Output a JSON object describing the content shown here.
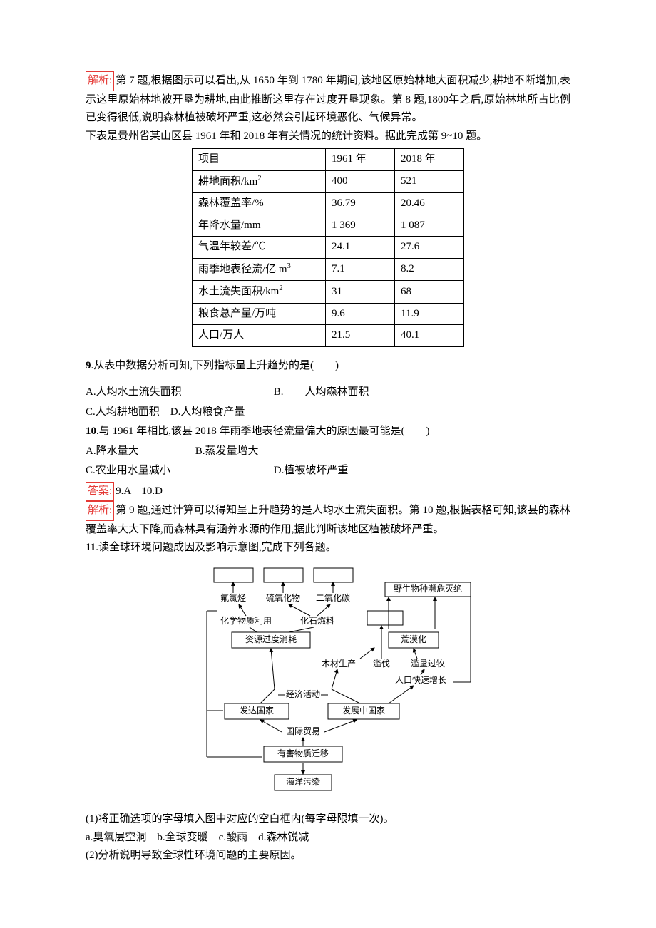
{
  "analysis7_8": {
    "label": "解析:",
    "text": "第 7 题,根据图示可以看出,从 1650 年到 1780 年期间,该地区原始林地大面积减少,耕地不断增加,表示这里原始林地被开垦为耕地,由此推断这里存在过度开垦现象。第 8 题,1800年之后,原始林地所占比例已变得很低,说明森林植被破坏严重,这必然会引起环境恶化、气候异常。"
  },
  "table_intro": "下表是贵州省某山区县 1961 年和 2018 年有关情况的统计资料。据此完成第 9~10 题。",
  "table": {
    "columns": [
      "项目",
      "1961 年",
      "2018 年"
    ],
    "rows": [
      {
        "item": "耕地面积/km",
        "sup": "2",
        "y1961": "400",
        "y2018": "521"
      },
      {
        "item": "森林覆盖率/%",
        "sup": "",
        "y1961": "36.79",
        "y2018": "20.46"
      },
      {
        "item": "年降水量/mm",
        "sup": "",
        "y1961": "1 369",
        "y2018": "1 087"
      },
      {
        "item": "气温年较差/℃",
        "sup": "",
        "y1961": "24.1",
        "y2018": "27.6"
      },
      {
        "item": "雨季地表径流/亿 m",
        "sup": "3",
        "y1961": "7.1",
        "y2018": "8.2"
      },
      {
        "item": "水土流失面积/km",
        "sup": "2",
        "y1961": "31",
        "y2018": "68"
      },
      {
        "item": "粮食总产量/万吨",
        "sup": "",
        "y1961": "9.6",
        "y2018": "11.9"
      },
      {
        "item": "人口/万人",
        "sup": "",
        "y1961": "21.5",
        "y2018": "40.1"
      }
    ],
    "col_widths": [
      "170px",
      "80px",
      "80px"
    ],
    "border_color": "#000000"
  },
  "q9": {
    "num": "9",
    "stem": ".从表中数据分析可知,下列指标呈上升趋势的是(　　)",
    "optA": "A.人均水土流失面积",
    "optB": "B.　　人均森林面积",
    "optC": "C.人均耕地面积",
    "optD": "D.人均粮食产量"
  },
  "q10": {
    "num": "10",
    "stem": ".与 1961 年相比,该县 2018 年雨季地表径流量偏大的原因最可能是(　　)",
    "optA": "A.降水量大",
    "optB": "B.蒸发量增大",
    "optC": "C.农业用水量减小",
    "optD": "D.植被破坏严重"
  },
  "answer9_10": {
    "label": "答案:",
    "text": "9.A　10.D"
  },
  "analysis9_10": {
    "label": "解析:",
    "text": "第 9 题,通过计算可以得知呈上升趋势的是人均水土流失面积。第 10 题,根据表格可知,该县的森林覆盖率大大下降,而森林具有涵养水源的作用,据此判断该地区植被破坏严重。"
  },
  "q11": {
    "num": "11",
    "stem": ".读全球环境问题成因及影响示意图,完成下列各题。"
  },
  "diagram": {
    "top_blanks": 3,
    "top_right": "野生物种濒危灭绝",
    "row2_labels": [
      "氟氯烃",
      "硫氧化物",
      "二氧化碳"
    ],
    "row3_labels": [
      "化学物质利用",
      "化石燃料"
    ],
    "row4_left": "资源过度消耗",
    "row4_right": "荒漠化",
    "row4b_labels": [
      "木材生产",
      "滥伐",
      "滥垦过牧"
    ],
    "row4c_right": "人口快速增长",
    "row5_center": "经济活动",
    "row6_left": "发达国家",
    "row6_right": "发展中国家",
    "row7_center": "国际贸易",
    "row8_center": "有害物质迁移",
    "row9_center": "海洋污染"
  },
  "q11_sub1": "(1)将正确选项的字母填入图中对应的空白框内(每字母限填一次)。",
  "q11_opts": "a.臭氧层空洞　b.全球变暖　c.酸雨　d.森林锐减",
  "q11_sub2": "(2)分析说明导致全球性环境问题的主要原因。"
}
